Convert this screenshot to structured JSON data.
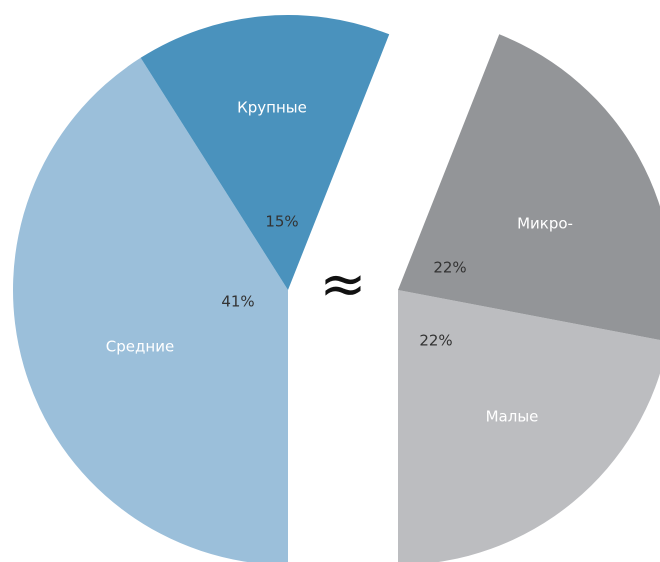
{
  "chart_data": [
    {
      "type": "pie",
      "categories": [
        "Средние",
        "Крупные"
      ],
      "values": [
        41,
        15
      ],
      "value_labels": [
        "41%",
        "15%"
      ],
      "colors": [
        "#9bbfda",
        "#4a92bd"
      ]
    },
    {
      "type": "pie",
      "categories": [
        "Малые",
        "Микро-"
      ],
      "values": [
        22,
        22
      ],
      "value_labels": [
        "22%",
        "22%"
      ],
      "colors": [
        "#bcbdc0",
        "#939598"
      ]
    }
  ],
  "annotation": "≈"
}
